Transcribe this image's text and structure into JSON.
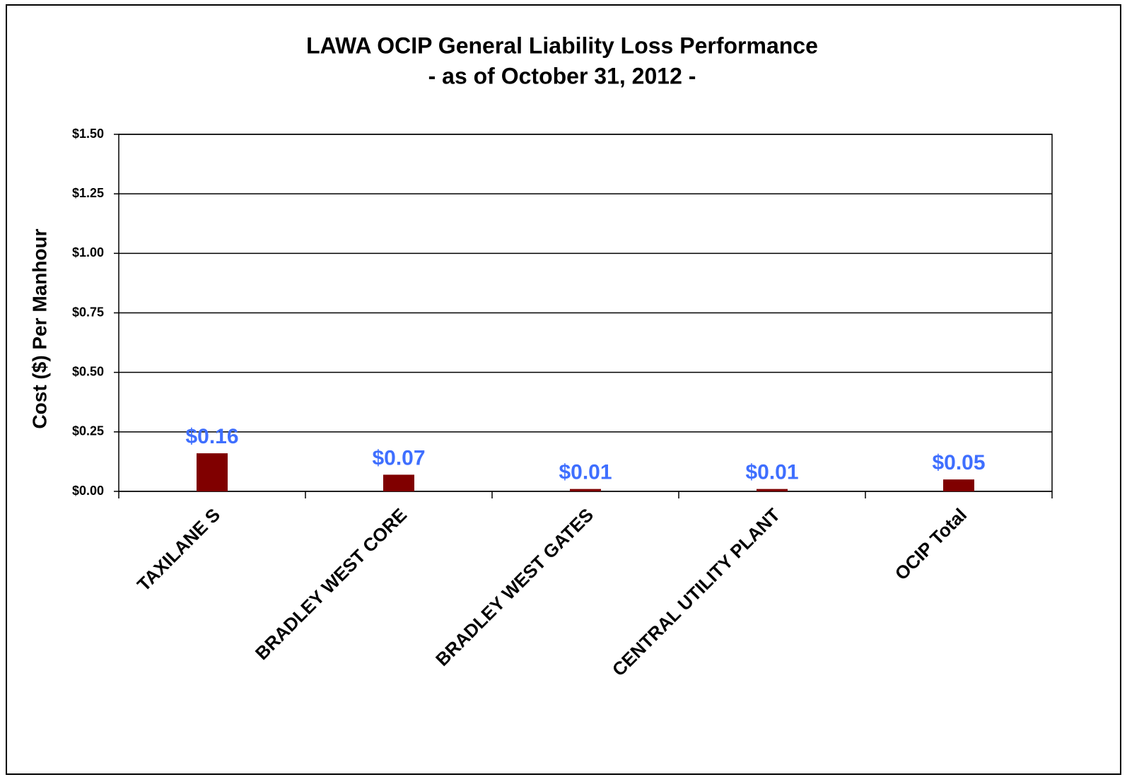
{
  "chart_data": {
    "type": "bar",
    "title": "LAWA OCIP General Liability  Loss Performance",
    "subtitle": "- as of October 31, 2012 -",
    "y_label": "Cost ($) Per Manhour",
    "categories": [
      "TAXILANE S",
      "BRADLEY WEST CORE",
      "BRADLEY WEST GATES",
      "CENTRAL UTILITY PLANT",
      "OCIP Total"
    ],
    "values": [
      0.16,
      0.07,
      0.01,
      0.01,
      0.05
    ],
    "value_labels": [
      "$0.16",
      "$0.07",
      "$0.01",
      "$0.01",
      "$0.05"
    ],
    "color": "#800000",
    "label_color": "#3f6fff",
    "ylim": [
      0,
      1.5
    ],
    "yticks": [
      {
        "value": 0,
        "label": "$0.00"
      },
      {
        "value": 0.25,
        "label": "$0.25"
      },
      {
        "value": 0.5,
        "label": "$0.50"
      },
      {
        "value": 0.75,
        "label": "$0.75"
      },
      {
        "value": 1,
        "label": "$1.00"
      },
      {
        "value": 1.25,
        "label": "$1.25"
      },
      {
        "value": 1.5,
        "label": "$1.50"
      }
    ],
    "grid": true
  }
}
